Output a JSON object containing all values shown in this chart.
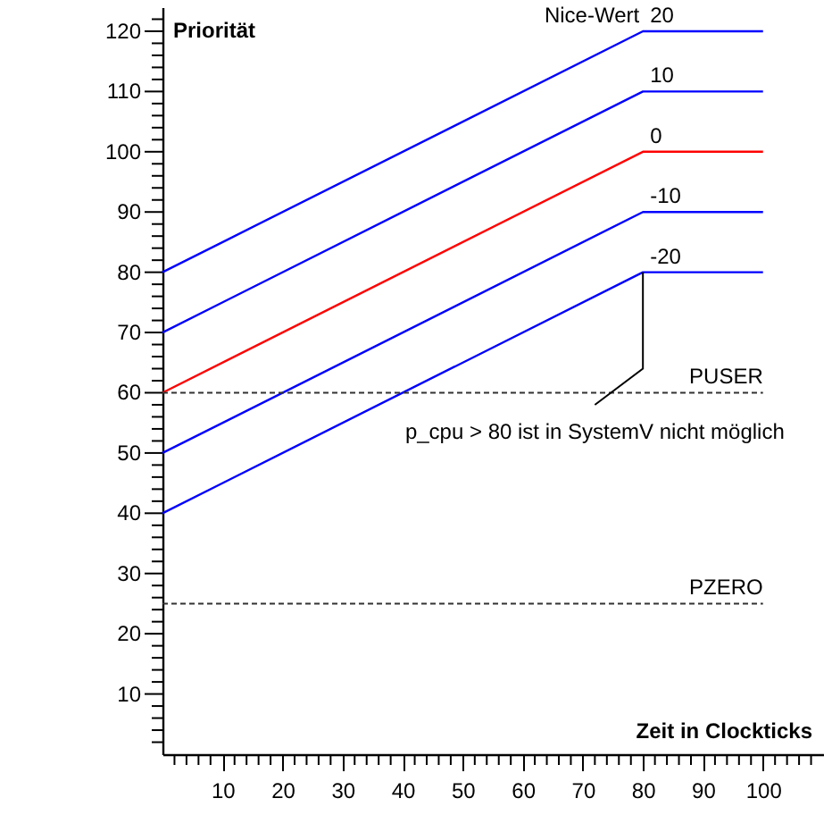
{
  "chart_data": {
    "type": "line",
    "xlabel": "Zeit in Clockticks",
    "ylabel": "Priorität",
    "legend_title": "Nice-Wert",
    "x": [
      0,
      80,
      100
    ],
    "series": [
      {
        "name": "20",
        "color": "#0000ff",
        "values": [
          80,
          120,
          120
        ]
      },
      {
        "name": "10",
        "color": "#0000ff",
        "values": [
          70,
          110,
          110
        ]
      },
      {
        "name": "0",
        "color": "#ff0000",
        "values": [
          60,
          100,
          100
        ]
      },
      {
        "name": "-10",
        "color": "#0000ff",
        "values": [
          50,
          90,
          90
        ]
      },
      {
        "name": "-20",
        "color": "#0000ff",
        "values": [
          40,
          80,
          80
        ]
      }
    ],
    "xlim": [
      0,
      110
    ],
    "ylim": [
      0,
      124
    ],
    "xticks": [
      {
        "value": 2,
        "label": null
      },
      {
        "value": 4,
        "label": null
      },
      {
        "value": 6,
        "label": null
      },
      {
        "value": 8,
        "label": null
      },
      10,
      {
        "value": 12,
        "label": null
      },
      {
        "value": 14,
        "label": null
      },
      {
        "value": 16,
        "label": null
      },
      {
        "value": 18,
        "label": null
      },
      20,
      {
        "value": 22,
        "label": null
      },
      {
        "value": 24,
        "label": null
      },
      {
        "value": 26,
        "label": null
      },
      {
        "value": 28,
        "label": null
      },
      30,
      {
        "value": 32,
        "label": null
      },
      {
        "value": 34,
        "label": null
      },
      {
        "value": 36,
        "label": null
      },
      {
        "value": 38,
        "label": null
      },
      40,
      {
        "value": 42,
        "label": null
      },
      {
        "value": 44,
        "label": null
      },
      {
        "value": 46,
        "label": null
      },
      {
        "value": 48,
        "label": null
      },
      50,
      {
        "value": 52,
        "label": null
      },
      {
        "value": 54,
        "label": null
      },
      {
        "value": 56,
        "label": null
      },
      {
        "value": 58,
        "label": null
      },
      60,
      {
        "value": 62,
        "label": null
      },
      {
        "value": 64,
        "label": null
      },
      {
        "value": 66,
        "label": null
      },
      {
        "value": 68,
        "label": null
      },
      70,
      {
        "value": 72,
        "label": null
      },
      {
        "value": 74,
        "label": null
      },
      {
        "value": 76,
        "label": null
      },
      {
        "value": 78,
        "label": null
      },
      80,
      {
        "value": 82,
        "label": null
      },
      {
        "value": 84,
        "label": null
      },
      {
        "value": 86,
        "label": null
      },
      {
        "value": 88,
        "label": null
      },
      90,
      {
        "value": 92,
        "label": null
      },
      {
        "value": 94,
        "label": null
      },
      {
        "value": 96,
        "label": null
      },
      {
        "value": 98,
        "label": null
      },
      100,
      {
        "value": 102,
        "label": null
      },
      {
        "value": 104,
        "label": null
      },
      {
        "value": 106,
        "label": null
      },
      {
        "value": 108,
        "label": null
      }
    ],
    "yticks": [
      {
        "value": 2,
        "label": null
      },
      {
        "value": 4,
        "label": null
      },
      {
        "value": 6,
        "label": null
      },
      {
        "value": 8,
        "label": null
      },
      10,
      {
        "value": 12,
        "label": null
      },
      {
        "value": 14,
        "label": null
      },
      {
        "value": 16,
        "label": null
      },
      {
        "value": 18,
        "label": null
      },
      20,
      {
        "value": 22,
        "label": null
      },
      {
        "value": 24,
        "label": null
      },
      {
        "value": 26,
        "label": null
      },
      {
        "value": 28,
        "label": null
      },
      30,
      {
        "value": 32,
        "label": null
      },
      {
        "value": 34,
        "label": null
      },
      {
        "value": 36,
        "label": null
      },
      {
        "value": 38,
        "label": null
      },
      40,
      {
        "value": 42,
        "label": null
      },
      {
        "value": 44,
        "label": null
      },
      {
        "value": 46,
        "label": null
      },
      {
        "value": 48,
        "label": null
      },
      50,
      {
        "value": 52,
        "label": null
      },
      {
        "value": 54,
        "label": null
      },
      {
        "value": 56,
        "label": null
      },
      {
        "value": 58,
        "label": null
      },
      60,
      {
        "value": 62,
        "label": null
      },
      {
        "value": 64,
        "label": null
      },
      {
        "value": 66,
        "label": null
      },
      {
        "value": 68,
        "label": null
      },
      70,
      {
        "value": 72,
        "label": null
      },
      {
        "value": 74,
        "label": null
      },
      {
        "value": 76,
        "label": null
      },
      {
        "value": 78,
        "label": null
      },
      80,
      {
        "value": 82,
        "label": null
      },
      {
        "value": 84,
        "label": null
      },
      {
        "value": 86,
        "label": null
      },
      {
        "value": 88,
        "label": null
      },
      90,
      {
        "value": 92,
        "label": null
      },
      {
        "value": 94,
        "label": null
      },
      {
        "value": 96,
        "label": null
      },
      {
        "value": 98,
        "label": null
      },
      100,
      {
        "value": 102,
        "label": null
      },
      {
        "value": 104,
        "label": null
      },
      {
        "value": 106,
        "label": null
      },
      {
        "value": 108,
        "label": null
      },
      110,
      {
        "value": 112,
        "label": null
      },
      {
        "value": 114,
        "label": null
      },
      {
        "value": 116,
        "label": null
      },
      {
        "value": 118,
        "label": null
      },
      120,
      {
        "value": 122,
        "label": null
      }
    ],
    "ref_lines": [
      {
        "axis": "y",
        "value": 60,
        "label": "PUSER",
        "color": "#333333",
        "line_style": "dashed"
      },
      {
        "axis": "y",
        "value": 25,
        "label": "PZERO",
        "color": "#333333",
        "line_style": "dashed"
      }
    ],
    "annotations": [
      {
        "text": "p_cpu > 80 ist in SystemV nicht möglich",
        "x": 80,
        "y": 80
      }
    ],
    "grid": false,
    "legend": false,
    "marker": "none",
    "line_style": "solid"
  }
}
